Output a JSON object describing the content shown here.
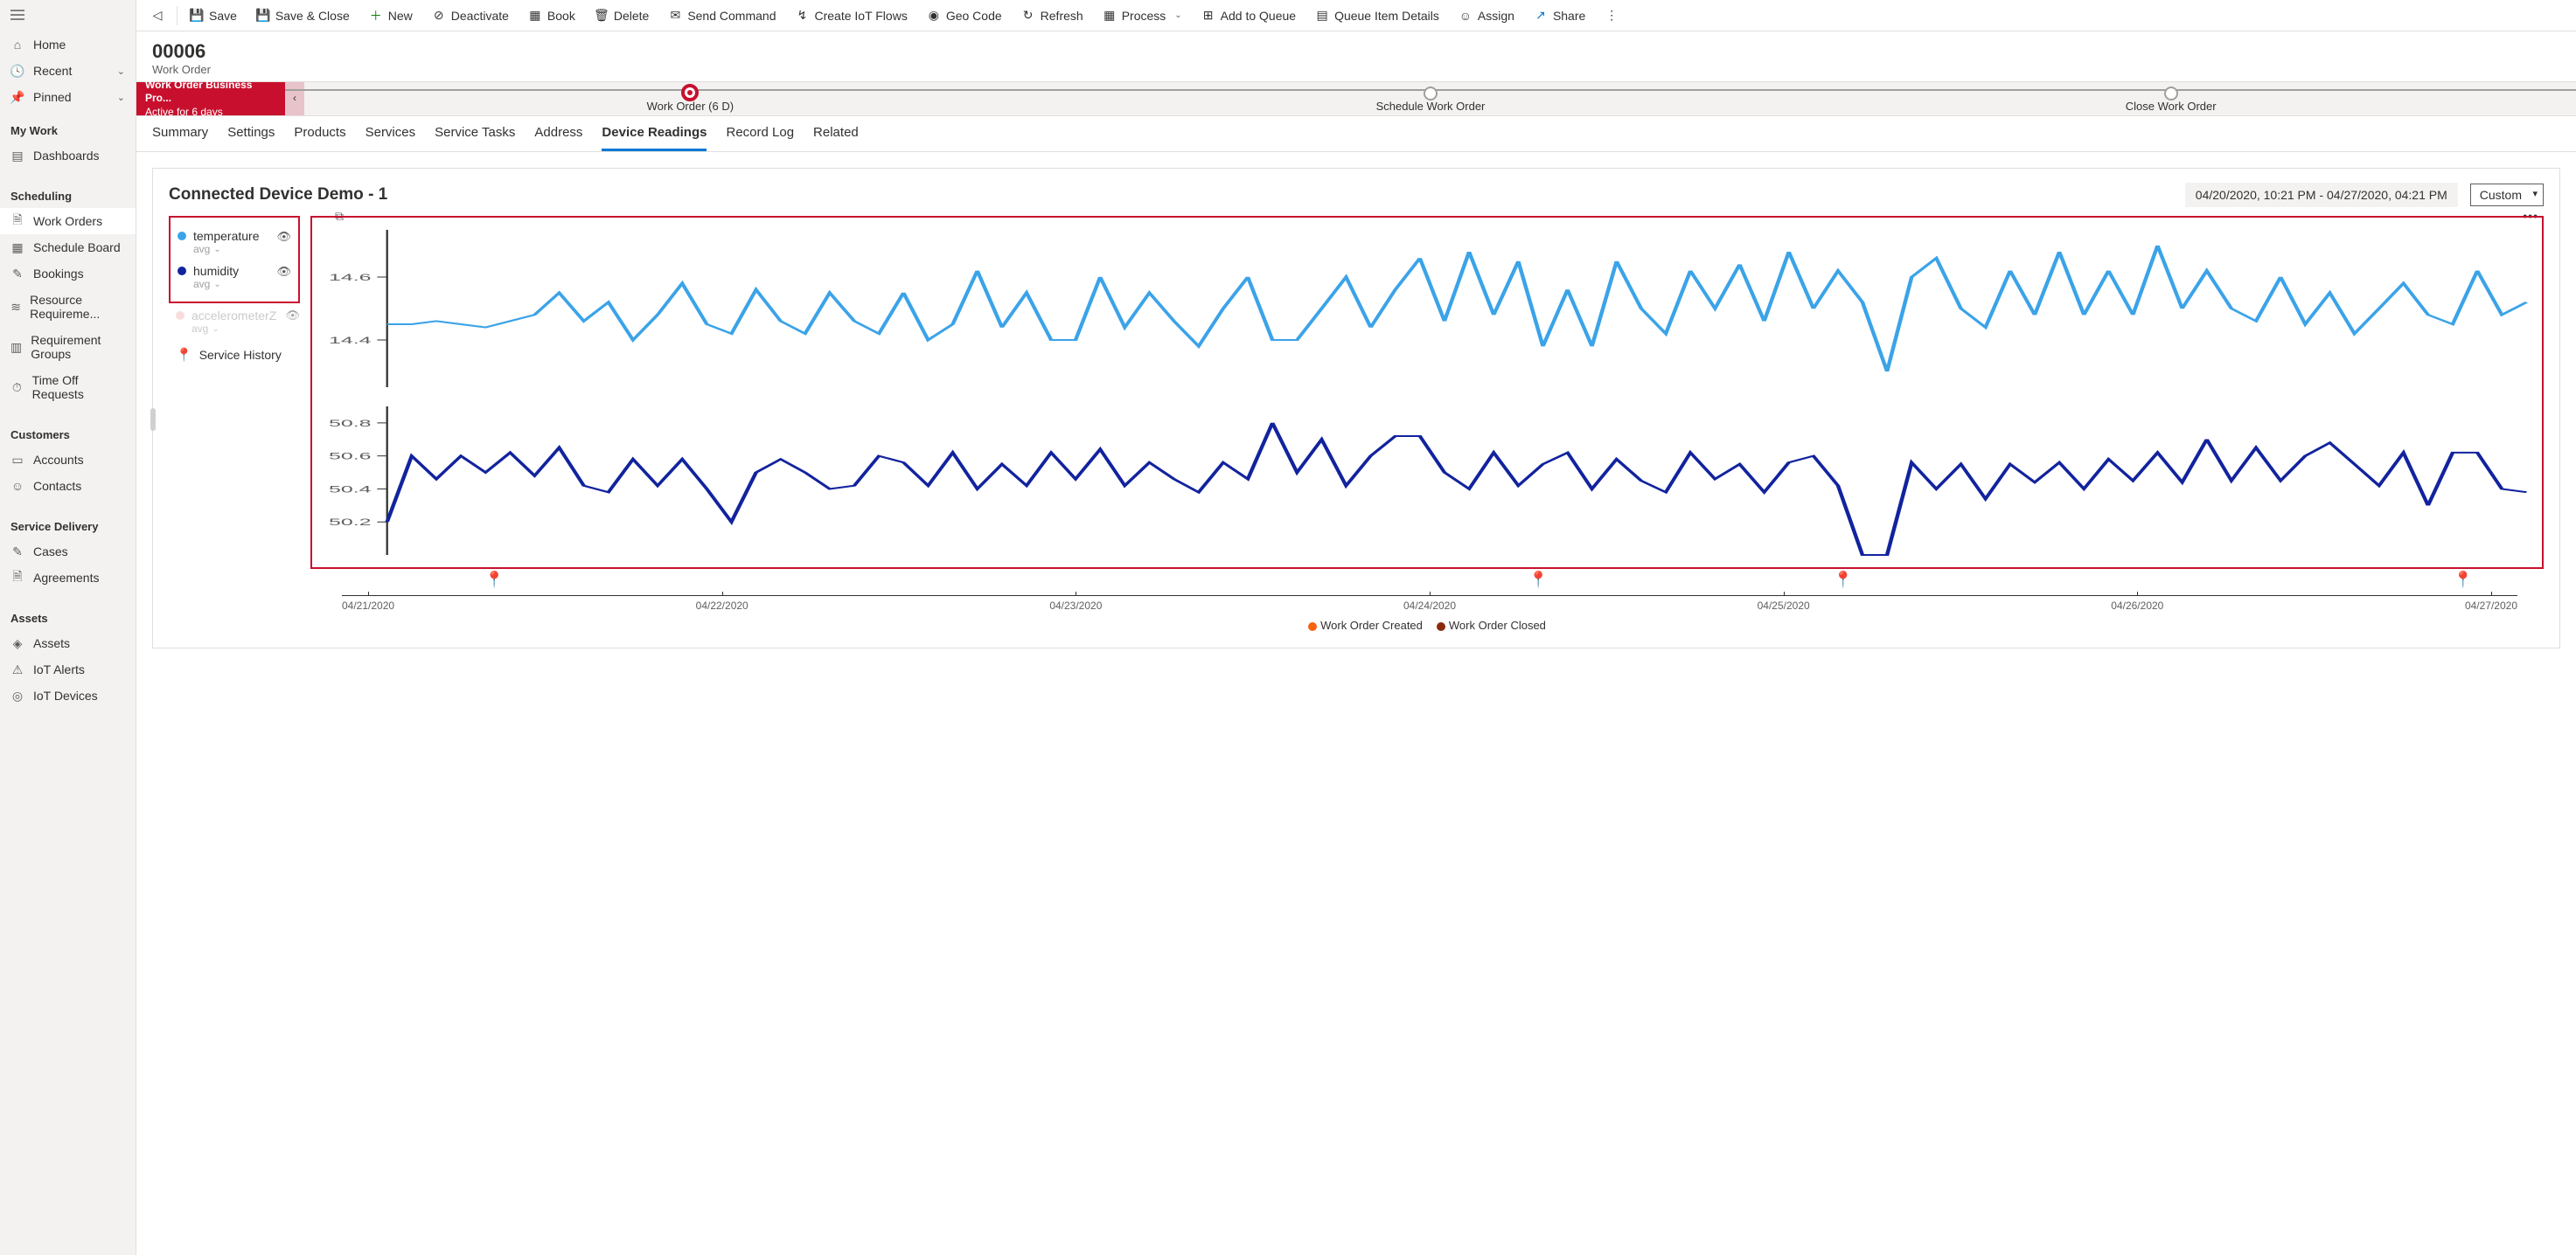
{
  "nav": {
    "top": [
      {
        "icon": "⌂",
        "label": "Home"
      },
      {
        "icon": "🕓",
        "label": "Recent",
        "chev": true
      },
      {
        "icon": "📌",
        "label": "Pinned",
        "chev": true
      }
    ],
    "groups": [
      {
        "title": "My Work",
        "items": [
          {
            "icon": "▤",
            "label": "Dashboards"
          }
        ]
      },
      {
        "title": "Scheduling",
        "items": [
          {
            "icon": "🗎",
            "label": "Work Orders",
            "active": true
          },
          {
            "icon": "▦",
            "label": "Schedule Board"
          },
          {
            "icon": "✎",
            "label": "Bookings"
          },
          {
            "icon": "≋",
            "label": "Resource Requireme..."
          },
          {
            "icon": "▥",
            "label": "Requirement Groups"
          },
          {
            "icon": "⏱",
            "label": "Time Off Requests"
          }
        ]
      },
      {
        "title": "Customers",
        "items": [
          {
            "icon": "▭",
            "label": "Accounts"
          },
          {
            "icon": "☺",
            "label": "Contacts"
          }
        ]
      },
      {
        "title": "Service Delivery",
        "items": [
          {
            "icon": "✎",
            "label": "Cases"
          },
          {
            "icon": "🗎",
            "label": "Agreements"
          }
        ]
      },
      {
        "title": "Assets",
        "items": [
          {
            "icon": "◈",
            "label": "Assets"
          },
          {
            "icon": "⚠",
            "label": "IoT Alerts"
          },
          {
            "icon": "◎",
            "label": "IoT Devices"
          }
        ]
      }
    ]
  },
  "commands": [
    {
      "icon": "💾",
      "label": "Save"
    },
    {
      "icon": "💾",
      "label": "Save & Close"
    },
    {
      "icon": "＋",
      "label": "New",
      "color": "#107c10"
    },
    {
      "icon": "⊘",
      "label": "Deactivate"
    },
    {
      "icon": "▦",
      "label": "Book"
    },
    {
      "icon": "🗑",
      "label": "Delete"
    },
    {
      "icon": "✉",
      "label": "Send Command"
    },
    {
      "icon": "↯",
      "label": "Create IoT Flows"
    },
    {
      "icon": "◉",
      "label": "Geo Code"
    },
    {
      "icon": "↻",
      "label": "Refresh"
    },
    {
      "icon": "▦",
      "label": "Process",
      "chev": true
    },
    {
      "icon": "⊞",
      "label": "Add to Queue"
    },
    {
      "icon": "▤",
      "label": "Queue Item Details"
    },
    {
      "icon": "☺",
      "label": "Assign"
    },
    {
      "icon": "↗",
      "label": "Share",
      "color": "#0078d4"
    }
  ],
  "record": {
    "id": "00006",
    "type": "Work Order"
  },
  "process": {
    "name": "Work Order Business Pro...",
    "duration": "Active for 6 days",
    "stages": [
      {
        "label": "Work Order  (6 D)",
        "active": true
      },
      {
        "label": "Schedule Work Order"
      },
      {
        "label": "Close Work Order"
      }
    ]
  },
  "tabs": [
    "Summary",
    "Settings",
    "Products",
    "Services",
    "Service Tasks",
    "Address",
    "Device Readings",
    "Record Log",
    "Related"
  ],
  "active_tab": "Device Readings",
  "device": {
    "title": "Connected Device Demo - 1",
    "date_range": "04/20/2020, 10:21 PM - 04/27/2020, 04:21 PM",
    "range_mode": "Custom",
    "series": [
      {
        "name": "temperature",
        "agg": "avg",
        "color": "#3ba3e8",
        "eye": true
      },
      {
        "name": "humidity",
        "agg": "avg",
        "color": "#12239e",
        "eye": true
      }
    ],
    "disabled_series": [
      {
        "name": "accelerometerZ",
        "agg": "avg",
        "color": "#f4c2c2"
      }
    ],
    "service_history_label": "Service History",
    "xaxis_labels": [
      "04/21/2020",
      "04/22/2020",
      "04/23/2020",
      "04/24/2020",
      "04/25/2020",
      "04/26/2020",
      "04/27/2020"
    ],
    "markers": [
      {
        "pos_pct": 7,
        "type": "open"
      },
      {
        "pos_pct": 55,
        "type": "closed"
      },
      {
        "pos_pct": 69,
        "type": "closed"
      },
      {
        "pos_pct": 97.5,
        "type": "closed"
      }
    ],
    "bottom_legend": [
      {
        "color": "#f7630c",
        "label": "Work Order Created"
      },
      {
        "color": "#8a2c0a",
        "label": "Work Order Closed"
      }
    ],
    "chart1": {
      "yticks": [
        {
          "v": 14.4,
          "label": "14.4"
        },
        {
          "v": 14.6,
          "label": "14.6"
        }
      ],
      "ylim": [
        14.25,
        14.75
      ],
      "color": "#3ba3e8",
      "stroke_width": 2,
      "values": [
        14.45,
        14.45,
        14.46,
        14.45,
        14.44,
        14.46,
        14.48,
        14.55,
        14.46,
        14.52,
        14.4,
        14.48,
        14.58,
        14.45,
        14.42,
        14.56,
        14.46,
        14.42,
        14.55,
        14.46,
        14.42,
        14.55,
        14.4,
        14.45,
        14.62,
        14.44,
        14.55,
        14.4,
        14.4,
        14.6,
        14.44,
        14.55,
        14.46,
        14.38,
        14.5,
        14.6,
        14.4,
        14.4,
        14.5,
        14.6,
        14.44,
        14.56,
        14.66,
        14.46,
        14.68,
        14.48,
        14.65,
        14.38,
        14.56,
        14.38,
        14.65,
        14.5,
        14.42,
        14.62,
        14.5,
        14.64,
        14.46,
        14.68,
        14.5,
        14.62,
        14.52,
        14.3,
        14.6,
        14.66,
        14.5,
        14.44,
        14.62,
        14.48,
        14.68,
        14.48,
        14.62,
        14.48,
        14.7,
        14.5,
        14.62,
        14.5,
        14.46,
        14.6,
        14.45,
        14.55,
        14.42,
        14.5,
        14.58,
        14.48,
        14.45,
        14.62,
        14.48,
        14.52
      ]
    },
    "chart2": {
      "yticks": [
        {
          "v": 50.2,
          "label": "50.2"
        },
        {
          "v": 50.4,
          "label": "50.4"
        },
        {
          "v": 50.6,
          "label": "50.6"
        },
        {
          "v": 50.8,
          "label": "50.8"
        }
      ],
      "ylim": [
        50.0,
        50.9
      ],
      "color": "#12239e",
      "stroke_width": 2,
      "values": [
        50.2,
        50.6,
        50.46,
        50.6,
        50.5,
        50.62,
        50.48,
        50.65,
        50.42,
        50.38,
        50.58,
        50.42,
        50.58,
        50.4,
        50.2,
        50.5,
        50.58,
        50.5,
        50.4,
        50.42,
        50.6,
        50.56,
        50.42,
        50.62,
        50.4,
        50.55,
        50.42,
        50.62,
        50.46,
        50.64,
        50.42,
        50.56,
        50.46,
        50.38,
        50.56,
        50.46,
        50.8,
        50.5,
        50.7,
        50.42,
        50.6,
        50.72,
        50.72,
        50.5,
        50.4,
        50.62,
        50.42,
        50.55,
        50.62,
        50.4,
        50.58,
        50.45,
        50.38,
        50.62,
        50.46,
        50.55,
        50.38,
        50.56,
        50.6,
        50.42,
        50.0,
        50.0,
        50.56,
        50.4,
        50.55,
        50.34,
        50.55,
        50.44,
        50.56,
        50.4,
        50.58,
        50.45,
        50.62,
        50.44,
        50.7,
        50.45,
        50.65,
        50.45,
        50.6,
        50.68,
        50.55,
        50.42,
        50.62,
        50.3,
        50.62,
        50.62,
        50.4,
        50.38
      ]
    }
  }
}
